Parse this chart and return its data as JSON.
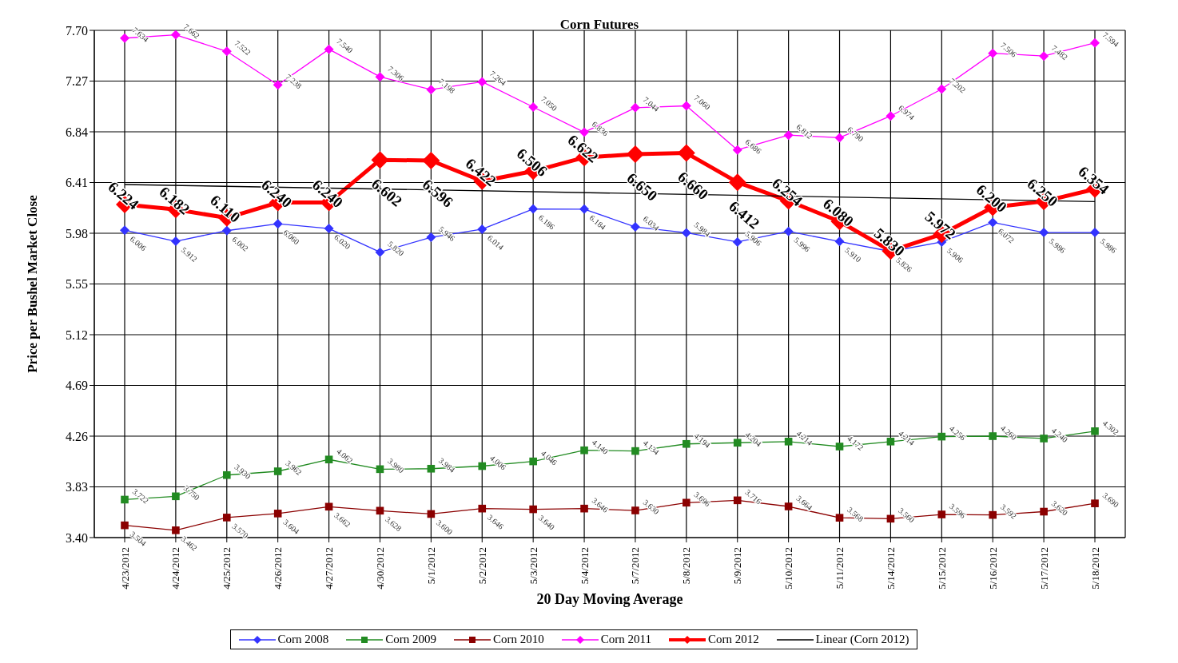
{
  "chart_data": {
    "type": "line",
    "title": "Corn  Futures",
    "xlabel": "20 Day Moving Average",
    "ylabel": "Price per Bushel Market Close",
    "categories": [
      "4/23/2012",
      "4/24/2012",
      "4/25/2012",
      "4/26/2012",
      "4/27/2012",
      "4/30/2012",
      "5/1/2012",
      "5/2/2012",
      "5/3/2012",
      "5/4/2012",
      "5/7/2012",
      "5/8/2012",
      "5/9/2012",
      "5/10/2012",
      "5/11/2012",
      "5/14/2012",
      "5/15/2012",
      "5/16/2012",
      "5/17/2012",
      "5/18/2012"
    ],
    "ylim": [
      3.4,
      7.7
    ],
    "yticks": [
      {
        "value": 3.4,
        "label": "3.40"
      },
      {
        "value": 3.83,
        "label": "3.83"
      },
      {
        "value": 4.26,
        "label": "4.26"
      },
      {
        "value": 4.69,
        "label": "4.69"
      },
      {
        "value": 5.12,
        "label": "5.12"
      },
      {
        "value": 5.55,
        "label": "5.55"
      },
      {
        "value": 5.98,
        "label": "5.98"
      },
      {
        "value": 6.41,
        "label": "6.41"
      },
      {
        "value": 6.84,
        "label": "6.84"
      },
      {
        "value": 7.27,
        "label": "7.27"
      },
      {
        "value": 7.7,
        "label": "7.70"
      }
    ],
    "grid": true,
    "legend": "bottom",
    "series": [
      {
        "name": "Corn 2008",
        "color": "#3333ff",
        "marker": "diamond",
        "values": [
          6.006,
          5.912,
          6.002,
          6.06,
          6.02,
          5.82,
          5.946,
          6.014,
          6.186,
          6.184,
          6.034,
          5.984,
          5.906,
          5.996,
          5.91,
          5.826,
          5.906,
          6.072,
          5.986,
          5.986
        ],
        "value_labels": [
          "6.006",
          "5.912",
          "6.002",
          "6.060",
          "6.020",
          "5.820",
          "5.946",
          "6.014",
          "6.186",
          "6.184",
          "6.034",
          "5.984",
          "5.906",
          "5.996",
          "5.910",
          "5.826",
          "5.906",
          "6.072",
          "5.986",
          "5.986"
        ]
      },
      {
        "name": "Corn 2009",
        "color": "#228b22",
        "marker": "square",
        "values": [
          3.722,
          3.75,
          3.93,
          3.962,
          4.062,
          3.98,
          3.984,
          4.006,
          4.046,
          4.14,
          4.134,
          4.194,
          4.204,
          4.214,
          4.172,
          4.214,
          4.256,
          4.26,
          4.24,
          4.302
        ],
        "value_labels": [
          "3.722",
          "3.750",
          "3.930",
          "3.962",
          "4.062",
          "3.980",
          "3.984",
          "4.006",
          "4.046",
          "4.140",
          "4.134",
          "4.194",
          "4.204",
          "4.214",
          "4.172",
          "4.214",
          "4.256",
          "4.260",
          "4.240",
          "4.302"
        ]
      },
      {
        "name": "Corn 2010",
        "color": "#8b0000",
        "marker": "square",
        "values": [
          3.504,
          3.462,
          3.57,
          3.604,
          3.662,
          3.628,
          3.6,
          3.646,
          3.64,
          3.646,
          3.63,
          3.696,
          3.716,
          3.664,
          3.568,
          3.56,
          3.596,
          3.592,
          3.62,
          3.69
        ],
        "value_labels": [
          "3.504",
          "3.462",
          "3.570",
          "3.604",
          "3.662",
          "3.628",
          "3.600",
          "3.646",
          "3.640",
          "3.646",
          "3.630",
          "3.696",
          "3.716",
          "3.664",
          "3.568",
          "3.560",
          "3.596",
          "3.592",
          "3.620",
          "3.690"
        ]
      },
      {
        "name": "Corn 2011",
        "color": "#ff00ff",
        "marker": "diamond",
        "values": [
          7.634,
          7.662,
          7.522,
          7.238,
          7.54,
          7.306,
          7.198,
          7.264,
          7.05,
          6.836,
          7.044,
          7.06,
          6.686,
          6.812,
          6.79,
          6.974,
          7.202,
          7.506,
          7.482,
          7.594
        ],
        "value_labels": [
          "7.634",
          "7.662",
          "7.522",
          "7.238",
          "7.540",
          "7.306",
          "7.198",
          "7.264",
          "7.050",
          "6.836",
          "7.044",
          "7.060",
          "6.686",
          "6.812",
          "6.790",
          "6.974",
          "7.202",
          "7.506",
          "7.482",
          "7.594"
        ]
      },
      {
        "name": "Corn 2012",
        "color": "#ff0000",
        "marker": "diamond",
        "values": [
          6.224,
          6.182,
          6.11,
          6.24,
          6.24,
          6.602,
          6.596,
          6.422,
          6.506,
          6.622,
          6.65,
          6.66,
          6.412,
          6.254,
          6.08,
          5.83,
          5.972,
          6.2,
          6.25,
          6.354
        ],
        "value_labels": [
          "6.224",
          "6.182",
          "6.110",
          "6.240",
          "6.240",
          "6.602",
          "6.596",
          "6.422",
          "6.506",
          "6.622",
          "6.650",
          "6.660",
          "6.412",
          "6.254",
          "6.080",
          "5.830",
          "5.972",
          "6.200",
          "6.250",
          "6.354"
        ]
      },
      {
        "name": "Linear (Corn 2012)",
        "color": "#000000",
        "marker": "none",
        "x": [
          "4/23/2012",
          "5/18/2012"
        ],
        "values": [
          6.393,
          6.248
        ]
      }
    ]
  }
}
